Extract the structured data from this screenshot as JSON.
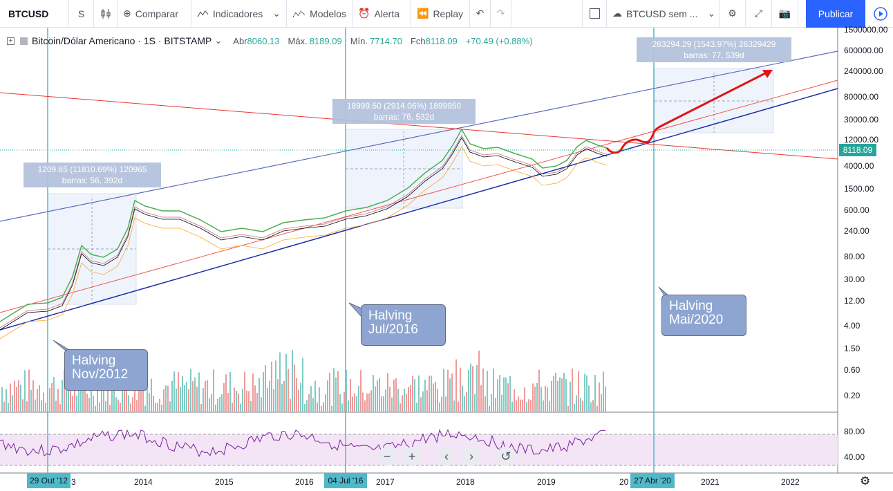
{
  "toolbar": {
    "symbol": "BTCUSD",
    "interval": "S",
    "compare": "Comparar",
    "indicators": "Indicadores",
    "templates": "Modelos",
    "alert": "Alerta",
    "replay": "Replay",
    "layout_name": "BTCUSD sem ...",
    "publish": "Publicar"
  },
  "legend": {
    "title": "Bitcoin/Dólar Americano · 1S · BITSTAMP",
    "open_label": "Abr",
    "open": "8060.13",
    "high_label": "Máx.",
    "high": "8189.09",
    "low_label": "Mín.",
    "low": "7714.70",
    "close_label": "Fch",
    "close": "8118.09",
    "change": "+70.49 (+0.88%)"
  },
  "price_axis": [
    "1500000.00",
    "600000.00",
    "240000.00",
    "80000.00",
    "30000.00",
    "12000.00",
    "4000.00",
    "1500.00",
    "600.00",
    "240.00",
    "80.00",
    "30.00",
    "12.00",
    "4.00",
    "1.50",
    "0.60",
    "0.20"
  ],
  "last_price": "8118.09",
  "rsi_axis": [
    "80.00",
    "40.00"
  ],
  "time_axis": [
    "3",
    "2014",
    "2015",
    "2016",
    "2017",
    "2018",
    "2019",
    "20",
    "2021",
    "2022"
  ],
  "time_flags": [
    "29 Out '12",
    "04 Jul '16",
    "27 Abr '20"
  ],
  "measures": [
    {
      "line1": "1209.65 (11810.69%) 120965",
      "line2": "barras: 56, 392d"
    },
    {
      "line1": "18999.50 (2914.06%) 1899950",
      "line2": "barras: 76, 532d"
    },
    {
      "line1": "263294.29 (1543.97%) 26329429",
      "line2": "barras: 77, 539d"
    }
  ],
  "callouts": [
    {
      "line1": "Halving",
      "line2": "Nov/2012"
    },
    {
      "line1": "Halving",
      "line2": "Jul/2016"
    },
    {
      "line1": "Halving",
      "line2": "Mai/2020"
    }
  ],
  "colors": {
    "up": "#26a69a",
    "down": "#ef5350",
    "halving_line": "#50b9c9",
    "channel_blue": "#1e2fa8",
    "trend_red": "#e53935",
    "rsi": "#7b1fa2",
    "rsi_band": "#f3e5f5"
  }
}
